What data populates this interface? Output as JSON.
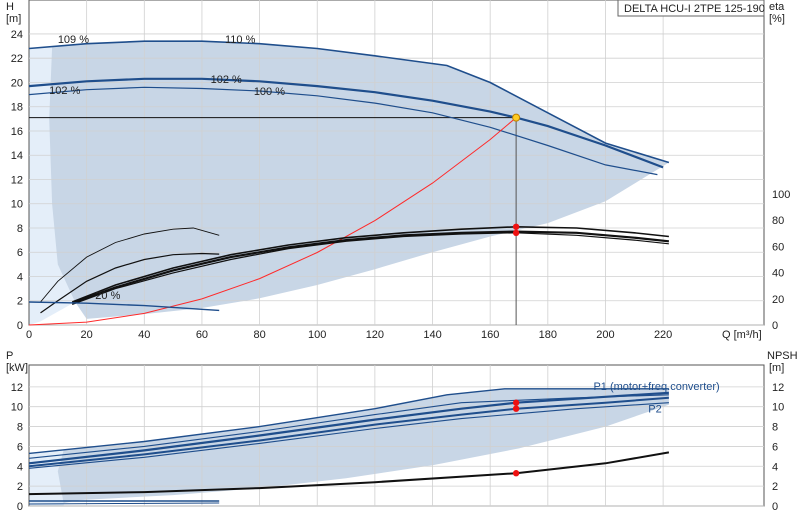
{
  "chart_data": [
    {
      "type": "line",
      "panel": "head-efficiency",
      "title": "DELTA HCU-I 2TPE 125-190",
      "x_axis": {
        "label": "Q [m³/h]",
        "ticks": [
          0,
          20,
          40,
          60,
          80,
          100,
          120,
          140,
          160,
          180,
          200,
          220
        ],
        "xlim": [
          0,
          255
        ]
      },
      "y_left": {
        "label_top": "H",
        "label_unit": "[m]",
        "ticks": [
          0,
          2,
          4,
          6,
          8,
          10,
          12,
          14,
          16,
          18,
          20,
          22,
          24
        ],
        "ylim": [
          0,
          26.8
        ]
      },
      "y_right": {
        "label_top": "eta",
        "label_unit": "[%]",
        "ticks": [
          0,
          20,
          40,
          60,
          80,
          100
        ]
      },
      "grid": true,
      "curve_labels": [
        {
          "text": "109 %",
          "x": 10,
          "y": 23.5
        },
        {
          "text": "110 %",
          "x": 68,
          "y": 23.5
        },
        {
          "text": "102 %",
          "x": 63,
          "y": 20.2
        },
        {
          "text": "100 %",
          "x": 78,
          "y": 19.2
        },
        {
          "text": "102 %",
          "x": 7,
          "y": 19.3
        },
        {
          "text": "20 %",
          "x": 23,
          "y": 2.4
        }
      ],
      "operating_point": {
        "x": 169,
        "y": 17.1,
        "eta_y_values": [
          8.1,
          7.6
        ]
      },
      "series": [
        {
          "name": "",
          "role": "head-max",
          "color": "#1f4e8c",
          "points": [
            [
              0,
              22.8
            ],
            [
              20,
              23.2
            ],
            [
              40,
              23.4
            ],
            [
              60,
              23.4
            ],
            [
              80,
              23.2
            ],
            [
              100,
              22.8
            ],
            [
              120,
              22.2
            ],
            [
              145,
              21.4
            ],
            [
              160,
              20.0
            ],
            [
              180,
              17.5
            ],
            [
              200,
              15.0
            ],
            [
              222,
              13.4
            ]
          ]
        },
        {
          "name": "",
          "role": "head-op",
          "color": "#1f4e8c",
          "points": [
            [
              0,
              19.7
            ],
            [
              20,
              20.1
            ],
            [
              40,
              20.3
            ],
            [
              60,
              20.3
            ],
            [
              80,
              20.1
            ],
            [
              100,
              19.7
            ],
            [
              120,
              19.2
            ],
            [
              140,
              18.5
            ],
            [
              160,
              17.6
            ],
            [
              169,
              17.1
            ],
            [
              180,
              16.4
            ],
            [
              200,
              14.8
            ],
            [
              220,
              13.0
            ]
          ]
        },
        {
          "name": "",
          "role": "head-min",
          "color": "#1f4e8c",
          "points": [
            [
              0,
              19.0
            ],
            [
              20,
              19.4
            ],
            [
              40,
              19.6
            ],
            [
              60,
              19.5
            ],
            [
              80,
              19.3
            ],
            [
              100,
              18.9
            ],
            [
              120,
              18.3
            ],
            [
              140,
              17.5
            ],
            [
              160,
              16.3
            ],
            [
              180,
              14.8
            ],
            [
              200,
              13.2
            ],
            [
              218,
              12.4
            ]
          ]
        },
        {
          "name": "",
          "role": "system-curve",
          "color": "#ff2a2a",
          "points": [
            [
              0,
              0
            ],
            [
              20,
              0.24
            ],
            [
              40,
              0.96
            ],
            [
              60,
              2.15
            ],
            [
              80,
              3.83
            ],
            [
              100,
              5.98
            ],
            [
              120,
              8.61
            ],
            [
              140,
              11.7
            ],
            [
              160,
              15.3
            ],
            [
              169,
              17.1
            ]
          ]
        },
        {
          "name": "",
          "role": "eta-1",
          "color": "#111111",
          "points": [
            [
              15,
              1.9
            ],
            [
              30,
              3.3
            ],
            [
              50,
              4.7
            ],
            [
              70,
              5.8
            ],
            [
              90,
              6.6
            ],
            [
              110,
              7.2
            ],
            [
              130,
              7.6
            ],
            [
              150,
              7.9
            ],
            [
              169,
              8.1
            ],
            [
              190,
              8.0
            ],
            [
              210,
              7.6
            ],
            [
              222,
              7.3
            ]
          ]
        },
        {
          "name": "",
          "role": "eta-2",
          "color": "#111111",
          "points": [
            [
              15,
              1.8
            ],
            [
              30,
              3.1
            ],
            [
              50,
              4.5
            ],
            [
              70,
              5.6
            ],
            [
              90,
              6.4
            ],
            [
              110,
              7.0
            ],
            [
              130,
              7.4
            ],
            [
              150,
              7.6
            ],
            [
              169,
              7.7
            ],
            [
              190,
              7.6
            ],
            [
              210,
              7.2
            ],
            [
              222,
              6.9
            ]
          ]
        },
        {
          "name": "",
          "role": "eta-3",
          "color": "#111111",
          "points": [
            [
              15,
              1.7
            ],
            [
              30,
              3.0
            ],
            [
              50,
              4.3
            ],
            [
              70,
              5.4
            ],
            [
              90,
              6.3
            ],
            [
              110,
              6.9
            ],
            [
              130,
              7.3
            ],
            [
              150,
              7.5
            ],
            [
              169,
              7.6
            ],
            [
              190,
              7.4
            ],
            [
              210,
              7.0
            ],
            [
              222,
              6.7
            ]
          ]
        },
        {
          "name": "",
          "role": "eta-low-1",
          "color": "#111111",
          "points": [
            [
              4,
              1.0
            ],
            [
              10,
              2.0
            ],
            [
              20,
              3.6
            ],
            [
              30,
              4.7
            ],
            [
              40,
              5.4
            ],
            [
              50,
              5.8
            ],
            [
              60,
              5.9
            ],
            [
              66,
              5.85
            ]
          ]
        },
        {
          "name": "",
          "role": "eta-low-2",
          "color": "#111111",
          "points": [
            [
              4,
              1.9
            ],
            [
              10,
              3.6
            ],
            [
              20,
              5.6
            ],
            [
              30,
              6.8
            ],
            [
              40,
              7.5
            ],
            [
              50,
              7.9
            ],
            [
              57,
              8.0
            ],
            [
              66,
              7.4
            ]
          ]
        },
        {
          "name": "",
          "role": "npsh-low",
          "color": "#1f4e8c",
          "points": [
            [
              0,
              1.9
            ],
            [
              20,
              1.8
            ],
            [
              40,
              1.6
            ],
            [
              66,
              1.2
            ]
          ]
        }
      ]
    },
    {
      "type": "line",
      "panel": "power-npsh",
      "x_axis": {
        "xlim": [
          0,
          255
        ]
      },
      "y_left": {
        "label_top": "P",
        "label_unit": "[kW]",
        "ticks": [
          0,
          2,
          4,
          6,
          8,
          10,
          12
        ],
        "ylim": [
          0,
          14.2
        ]
      },
      "y_right": {
        "label_top": "NPSH",
        "label_unit": "[m]",
        "ticks": [
          0,
          2,
          4,
          6,
          8,
          10,
          12
        ]
      },
      "grid": true,
      "series_labels": [
        {
          "text": "P1 (motor+freq.converter)",
          "x": 200,
          "y": 12.1,
          "color": "#1f4e8c"
        },
        {
          "text": "P2",
          "x": 219,
          "y": 9.8,
          "color": "#1f4e8c"
        }
      ],
      "points_marked": [
        {
          "x": 169,
          "y": 10.4
        },
        {
          "x": 169,
          "y": 9.8
        },
        {
          "x": 169,
          "y": 3.3
        }
      ],
      "series": [
        {
          "name": "P1 (motor+freq.converter)",
          "role": "p1-max",
          "color": "#1f4e8c",
          "points": [
            [
              0,
              5.3
            ],
            [
              40,
              6.5
            ],
            [
              80,
              8.0
            ],
            [
              120,
              9.8
            ],
            [
              145,
              11.2
            ],
            [
              165,
              11.8
            ],
            [
              222,
              11.8
            ]
          ]
        },
        {
          "name": "",
          "role": "p1-op",
          "color": "#1f4e8c",
          "points": [
            [
              0,
              4.3
            ],
            [
              40,
              5.6
            ],
            [
              80,
              7.1
            ],
            [
              120,
              8.7
            ],
            [
              150,
              9.8
            ],
            [
              169,
              10.4
            ],
            [
              200,
              11.0
            ],
            [
              222,
              11.4
            ]
          ]
        },
        {
          "name": "",
          "role": "p1-min",
          "color": "#1f4e8c",
          "points": [
            [
              0,
              4.8
            ],
            [
              40,
              6.0
            ],
            [
              80,
              7.5
            ],
            [
              120,
              9.2
            ],
            [
              150,
              10.4
            ],
            [
              190,
              10.9
            ],
            [
              222,
              11.2
            ]
          ]
        },
        {
          "name": "P2",
          "role": "p2-op",
          "color": "#1f4e8c",
          "points": [
            [
              0,
              4.0
            ],
            [
              40,
              5.2
            ],
            [
              80,
              6.6
            ],
            [
              120,
              8.2
            ],
            [
              150,
              9.2
            ],
            [
              169,
              9.8
            ],
            [
              200,
              10.4
            ],
            [
              222,
              10.9
            ]
          ]
        },
        {
          "name": "",
          "role": "p2-min",
          "color": "#1f4e8c",
          "points": [
            [
              0,
              3.8
            ],
            [
              40,
              4.9
            ],
            [
              80,
              6.3
            ],
            [
              120,
              7.8
            ],
            [
              150,
              8.8
            ],
            [
              190,
              9.8
            ],
            [
              222,
              10.4
            ]
          ]
        },
        {
          "name": "",
          "role": "npsh",
          "color": "#111111",
          "points": [
            [
              0,
              1.2
            ],
            [
              40,
              1.4
            ],
            [
              80,
              1.8
            ],
            [
              120,
              2.4
            ],
            [
              169,
              3.3
            ],
            [
              200,
              4.3
            ],
            [
              222,
              5.4
            ]
          ]
        },
        {
          "name": "",
          "role": "p-low-1",
          "color": "#1f4e8c",
          "points": [
            [
              0,
              0.5
            ],
            [
              30,
              0.5
            ],
            [
              66,
              0.5
            ]
          ]
        },
        {
          "name": "",
          "role": "p-low-2",
          "color": "#1f4e8c",
          "points": [
            [
              0,
              0.2
            ],
            [
              30,
              0.25
            ],
            [
              66,
              0.3
            ]
          ]
        }
      ]
    }
  ],
  "shading": {
    "region_fill": "#c8d6e6",
    "left_band_fill": "#e4eef9"
  }
}
